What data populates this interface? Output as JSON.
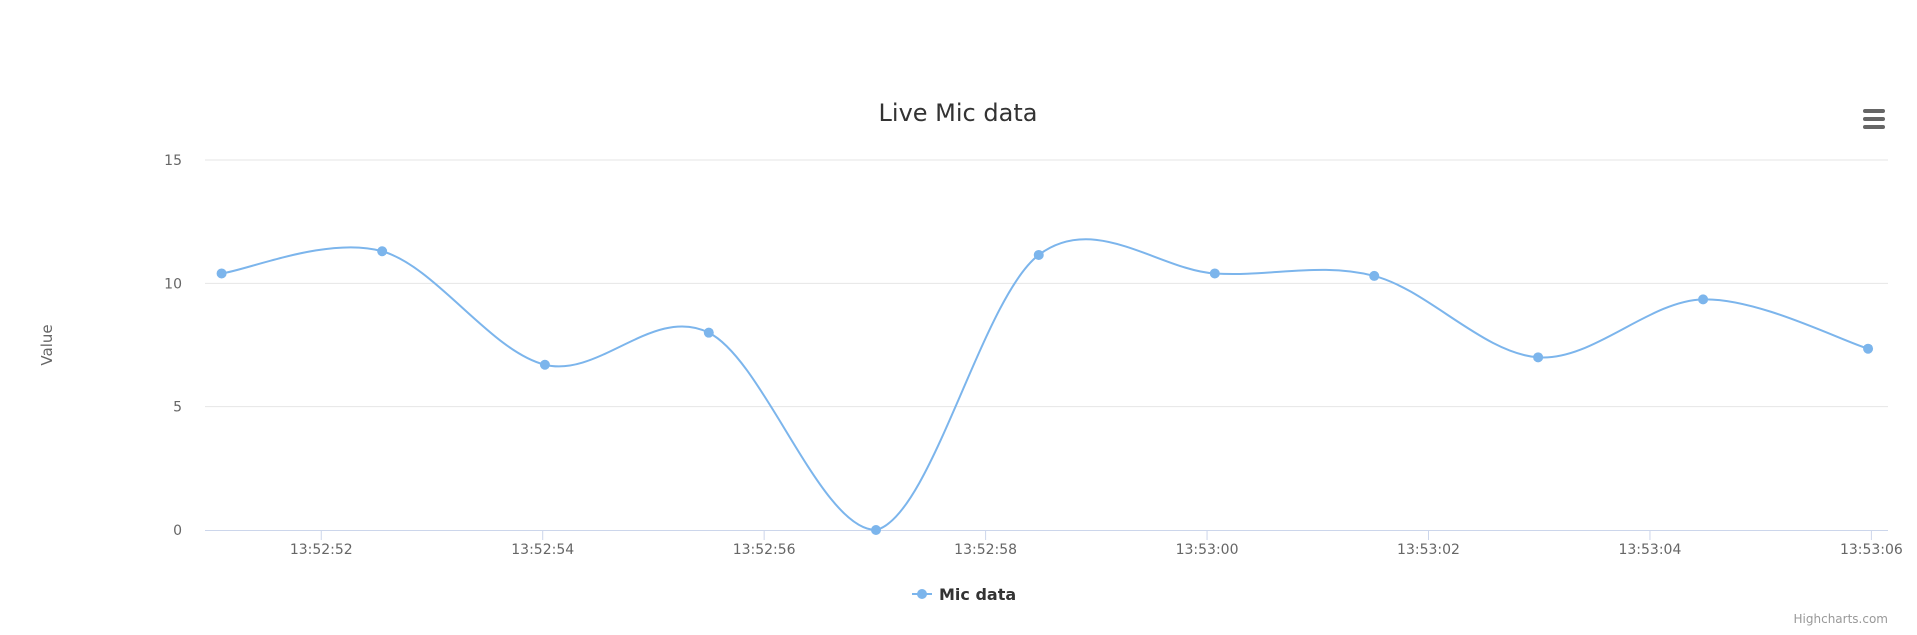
{
  "chart_data": {
    "type": "line",
    "title": "Live Mic data",
    "ylabel": "Value",
    "xlabel": "",
    "ylim": [
      0,
      15
    ],
    "yticks": [
      0,
      5,
      10,
      15
    ],
    "xticks": [
      "13:52:52",
      "13:52:54",
      "13:52:56",
      "13:52:58",
      "13:53:00",
      "13:53:02",
      "13:53:04",
      "13:53:06"
    ],
    "xlim": [
      "13:52:50.950",
      "13:53:06.150"
    ],
    "grid": true,
    "legend_position": "bottom-center",
    "series": [
      {
        "name": "Mic data",
        "color": "#7cb5ec",
        "x": [
          "13:52:51.100",
          "13:52:52.550",
          "13:52:54.020",
          "13:52:55.500",
          "13:52:57.010",
          "13:52:58.480",
          "13:53:00.070",
          "13:53:01.510",
          "13:53:02.990",
          "13:53:04.480",
          "13:53:05.970"
        ],
        "values": [
          10.4,
          11.3,
          6.7,
          8.0,
          0.0,
          11.15,
          10.4,
          10.3,
          7.0,
          9.35,
          7.35
        ]
      }
    ]
  },
  "menu": {
    "icon": "hamburger-menu-icon"
  },
  "credits": "Highcharts.com"
}
